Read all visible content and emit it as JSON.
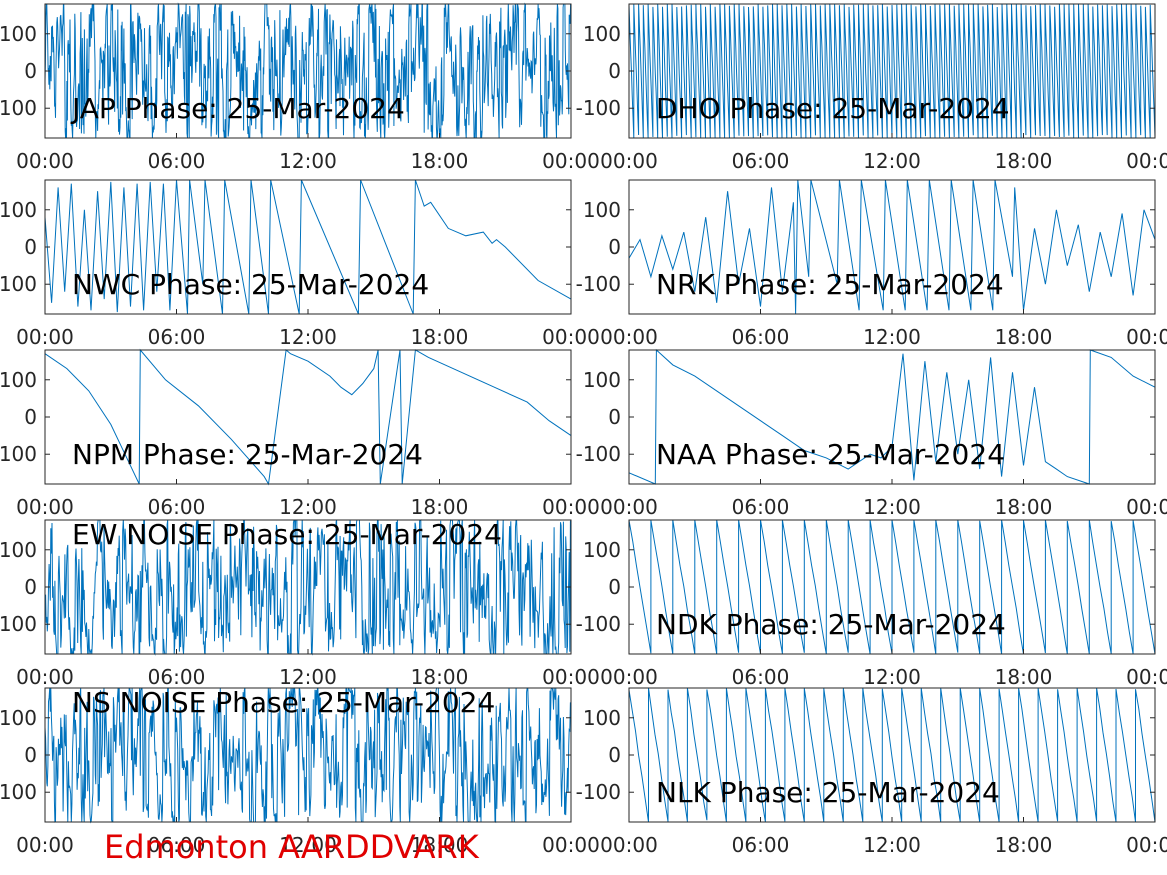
{
  "footer_label": "Edmonton AARDDVARK",
  "line_color": "#0072bd",
  "footer_color": "#e00000",
  "chart_data": [
    {
      "type": "line",
      "title": "JAP Phase: 25-Mar-2024",
      "ylim": [
        -180,
        180
      ],
      "xlim": [
        "00:00",
        "24:00"
      ],
      "grid": false,
      "yticks": [
        "100",
        "0",
        "-100"
      ],
      "xticks": [
        "00:00",
        "06:00",
        "12:00",
        "18:00",
        "00:00"
      ],
      "pattern": "noise",
      "params": {
        "amp": 180,
        "density": 1200,
        "seed": 1
      }
    },
    {
      "type": "line",
      "title": "DHO Phase: 25-Mar-2024",
      "ylim": [
        -180,
        180
      ],
      "xlim": [
        "00:00",
        "24:00"
      ],
      "grid": false,
      "yticks": [
        "100",
        "0",
        "-100"
      ],
      "xticks": [
        "00:00",
        "06:00",
        "12:00",
        "18:00",
        "00:00"
      ],
      "pattern": "sawtooth",
      "params": {
        "wraps": 110,
        "noise": 8,
        "seed": 2
      }
    },
    {
      "type": "line",
      "title": "NWC Phase: 25-Mar-2024",
      "ylim": [
        -180,
        180
      ],
      "xlim": [
        "00:00",
        "24:00"
      ],
      "grid": false,
      "yticks": [
        "100",
        "0",
        "-100"
      ],
      "xticks": [
        "00:00",
        "06:00",
        "12:00",
        "18:00",
        "00:00"
      ],
      "pattern": "trace",
      "points": [
        [
          0.0,
          80
        ],
        [
          0.3,
          -150
        ],
        [
          0.6,
          160
        ],
        [
          0.9,
          -120
        ],
        [
          1.2,
          170
        ],
        [
          1.5,
          -160
        ],
        [
          1.8,
          100
        ],
        [
          2.1,
          -170
        ],
        [
          2.4,
          150
        ],
        [
          2.7,
          -140
        ],
        [
          3.0,
          175
        ],
        [
          3.3,
          -175
        ],
        [
          3.6,
          160
        ],
        [
          3.9,
          -160
        ],
        [
          4.2,
          170
        ],
        [
          4.5,
          -170
        ],
        [
          4.8,
          175
        ],
        [
          5.1,
          -120
        ],
        [
          5.4,
          170
        ],
        [
          5.7,
          -170
        ],
        [
          6.0,
          180
        ],
        [
          6.5,
          -180
        ],
        [
          6.6,
          180
        ],
        [
          7.2,
          -100
        ],
        [
          7.3,
          180
        ],
        [
          8.1,
          -180
        ],
        [
          8.2,
          180
        ],
        [
          9.3,
          -180
        ],
        [
          9.4,
          180
        ],
        [
          10.2,
          -180
        ],
        [
          10.3,
          180
        ],
        [
          11.6,
          -180
        ],
        [
          11.7,
          180
        ],
        [
          14.3,
          -180
        ],
        [
          14.4,
          180
        ],
        [
          16.8,
          -180
        ],
        [
          16.9,
          180
        ],
        [
          17.3,
          110
        ],
        [
          17.6,
          120
        ],
        [
          18.4,
          50
        ],
        [
          19.2,
          30
        ],
        [
          20.0,
          40
        ],
        [
          20.4,
          10
        ],
        [
          20.6,
          20
        ],
        [
          21.0,
          0
        ],
        [
          22.5,
          -90
        ],
        [
          24.0,
          -140
        ]
      ]
    },
    {
      "type": "line",
      "title": "NRK Phase: 25-Mar-2024",
      "ylim": [
        -180,
        180
      ],
      "xlim": [
        "00:00",
        "24:00"
      ],
      "grid": false,
      "yticks": [
        "100",
        "0",
        "-100"
      ],
      "xticks": [
        "00:00",
        "06:00",
        "12:00",
        "18:00",
        "00:00"
      ],
      "pattern": "trace",
      "points": [
        [
          0.0,
          -30
        ],
        [
          0.5,
          20
        ],
        [
          1.0,
          -80
        ],
        [
          1.5,
          30
        ],
        [
          2.0,
          -60
        ],
        [
          2.5,
          40
        ],
        [
          3.0,
          -120
        ],
        [
          3.5,
          80
        ],
        [
          4.0,
          -150
        ],
        [
          4.5,
          150
        ],
        [
          5.0,
          -100
        ],
        [
          5.5,
          50
        ],
        [
          6.0,
          -160
        ],
        [
          6.5,
          160
        ],
        [
          7.0,
          -120
        ],
        [
          7.5,
          120
        ],
        [
          7.6,
          -180
        ],
        [
          7.7,
          180
        ],
        [
          8.2,
          -80
        ],
        [
          8.3,
          180
        ],
        [
          9.5,
          -100
        ],
        [
          9.6,
          180
        ],
        [
          10.5,
          -170
        ],
        [
          10.6,
          180
        ],
        [
          11.6,
          -170
        ],
        [
          11.7,
          180
        ],
        [
          12.6,
          -170
        ],
        [
          12.7,
          180
        ],
        [
          13.6,
          -170
        ],
        [
          13.7,
          180
        ],
        [
          14.6,
          -170
        ],
        [
          14.7,
          180
        ],
        [
          15.6,
          -170
        ],
        [
          15.7,
          180
        ],
        [
          16.6,
          -170
        ],
        [
          16.7,
          180
        ],
        [
          17.5,
          -80
        ],
        [
          17.6,
          160
        ],
        [
          18.0,
          -170
        ],
        [
          18.5,
          50
        ],
        [
          19.0,
          -100
        ],
        [
          19.5,
          100
        ],
        [
          20.0,
          -50
        ],
        [
          20.5,
          60
        ],
        [
          21.0,
          -120
        ],
        [
          21.5,
          40
        ],
        [
          22.0,
          -80
        ],
        [
          22.5,
          90
        ],
        [
          23.0,
          -130
        ],
        [
          23.5,
          100
        ],
        [
          24.0,
          20
        ]
      ]
    },
    {
      "type": "line",
      "title": "NPM Phase: 25-Mar-2024",
      "ylim": [
        -180,
        180
      ],
      "xlim": [
        "00:00",
        "24:00"
      ],
      "grid": false,
      "yticks": [
        "100",
        "0",
        "-100"
      ],
      "xticks": [
        "00:00",
        "06:00",
        "12:00",
        "18:00",
        "00:00"
      ],
      "pattern": "trace",
      "points": [
        [
          0.0,
          170
        ],
        [
          1.0,
          130
        ],
        [
          2.0,
          70
        ],
        [
          3.0,
          -20
        ],
        [
          4.3,
          -180
        ],
        [
          4.35,
          180
        ],
        [
          5.5,
          100
        ],
        [
          7.0,
          30
        ],
        [
          8.5,
          -60
        ],
        [
          10.0,
          -160
        ],
        [
          10.2,
          -180
        ],
        [
          11.0,
          180
        ],
        [
          11.2,
          170
        ],
        [
          12.0,
          150
        ],
        [
          13.0,
          110
        ],
        [
          13.5,
          80
        ],
        [
          14.0,
          60
        ],
        [
          14.5,
          90
        ],
        [
          15.0,
          130
        ],
        [
          15.2,
          180
        ],
        [
          15.3,
          -180
        ],
        [
          16.2,
          180
        ],
        [
          16.3,
          -180
        ],
        [
          16.9,
          180
        ],
        [
          17.5,
          160
        ],
        [
          19.0,
          120
        ],
        [
          20.5,
          80
        ],
        [
          22.0,
          40
        ],
        [
          23.0,
          -10
        ],
        [
          24.0,
          -50
        ]
      ]
    },
    {
      "type": "line",
      "title": "NAA Phase: 25-Mar-2024",
      "ylim": [
        -180,
        180
      ],
      "xlim": [
        "00:00",
        "24:00"
      ],
      "grid": false,
      "yticks": [
        "100",
        "0",
        "-100"
      ],
      "xticks": [
        "00:00",
        "06:00",
        "12:00",
        "18:00",
        "00:00"
      ],
      "pattern": "trace",
      "points": [
        [
          0.0,
          -150
        ],
        [
          1.2,
          -180
        ],
        [
          1.25,
          180
        ],
        [
          2.0,
          140
        ],
        [
          3.0,
          110
        ],
        [
          4.0,
          70
        ],
        [
          5.0,
          30
        ],
        [
          6.0,
          -10
        ],
        [
          7.0,
          -50
        ],
        [
          8.0,
          -90
        ],
        [
          9.0,
          -110
        ],
        [
          10.0,
          -140
        ],
        [
          11.0,
          -100
        ],
        [
          11.5,
          -110
        ],
        [
          12.0,
          -80
        ],
        [
          12.5,
          170
        ],
        [
          13.0,
          -170
        ],
        [
          13.5,
          150
        ],
        [
          14.0,
          -120
        ],
        [
          14.5,
          120
        ],
        [
          15.0,
          -100
        ],
        [
          15.5,
          100
        ],
        [
          16.0,
          -140
        ],
        [
          16.5,
          160
        ],
        [
          17.0,
          -160
        ],
        [
          17.5,
          120
        ],
        [
          18.0,
          -130
        ],
        [
          18.5,
          80
        ],
        [
          19.0,
          -120
        ],
        [
          19.5,
          -140
        ],
        [
          20.0,
          -160
        ],
        [
          21.0,
          -180
        ],
        [
          21.05,
          180
        ],
        [
          22.0,
          160
        ],
        [
          23.0,
          110
        ],
        [
          24.0,
          80
        ]
      ]
    },
    {
      "type": "line",
      "title": "EW NOISE Phase: 25-Mar-2024",
      "ylim": [
        -180,
        180
      ],
      "xlim": [
        "00:00",
        "24:00"
      ],
      "grid": false,
      "yticks": [
        "100",
        "0",
        "-100"
      ],
      "xticks": [
        "00:00",
        "06:00",
        "12:00",
        "18:00",
        "00:00"
      ],
      "pattern": "noise",
      "params": {
        "amp": 180,
        "density": 900,
        "seed": 7
      }
    },
    {
      "type": "line",
      "title": "NDK Phase: 25-Mar-2024",
      "ylim": [
        -180,
        180
      ],
      "xlim": [
        "00:00",
        "24:00"
      ],
      "grid": false,
      "yticks": [
        "100",
        "0",
        "-100"
      ],
      "xticks": [
        "00:00",
        "06:00",
        "12:00",
        "18:00",
        "00:00"
      ],
      "pattern": "sawtooth",
      "params": {
        "wraps": 24,
        "noise": 4,
        "seed": 8
      }
    },
    {
      "type": "line",
      "title": "NS NOISE Phase: 25-Mar-2024",
      "ylim": [
        -180,
        180
      ],
      "xlim": [
        "00:00",
        "24:00"
      ],
      "grid": false,
      "yticks": [
        "100",
        "0",
        "-100"
      ],
      "xticks": [
        "00:00",
        "06:00",
        "12:00",
        "18:00",
        "00:00"
      ],
      "pattern": "noise",
      "params": {
        "amp": 180,
        "density": 900,
        "seed": 9
      }
    },
    {
      "type": "line",
      "title": "NLK Phase: 25-Mar-2024",
      "ylim": [
        -180,
        180
      ],
      "xlim": [
        "00:00",
        "24:00"
      ],
      "grid": false,
      "yticks": [
        "100",
        "0",
        "-100"
      ],
      "xticks": [
        "00:00",
        "06:00",
        "12:00",
        "18:00",
        "00:00"
      ],
      "pattern": "sawtooth",
      "params": {
        "wraps": 27,
        "noise": 6,
        "seed": 10
      }
    }
  ]
}
